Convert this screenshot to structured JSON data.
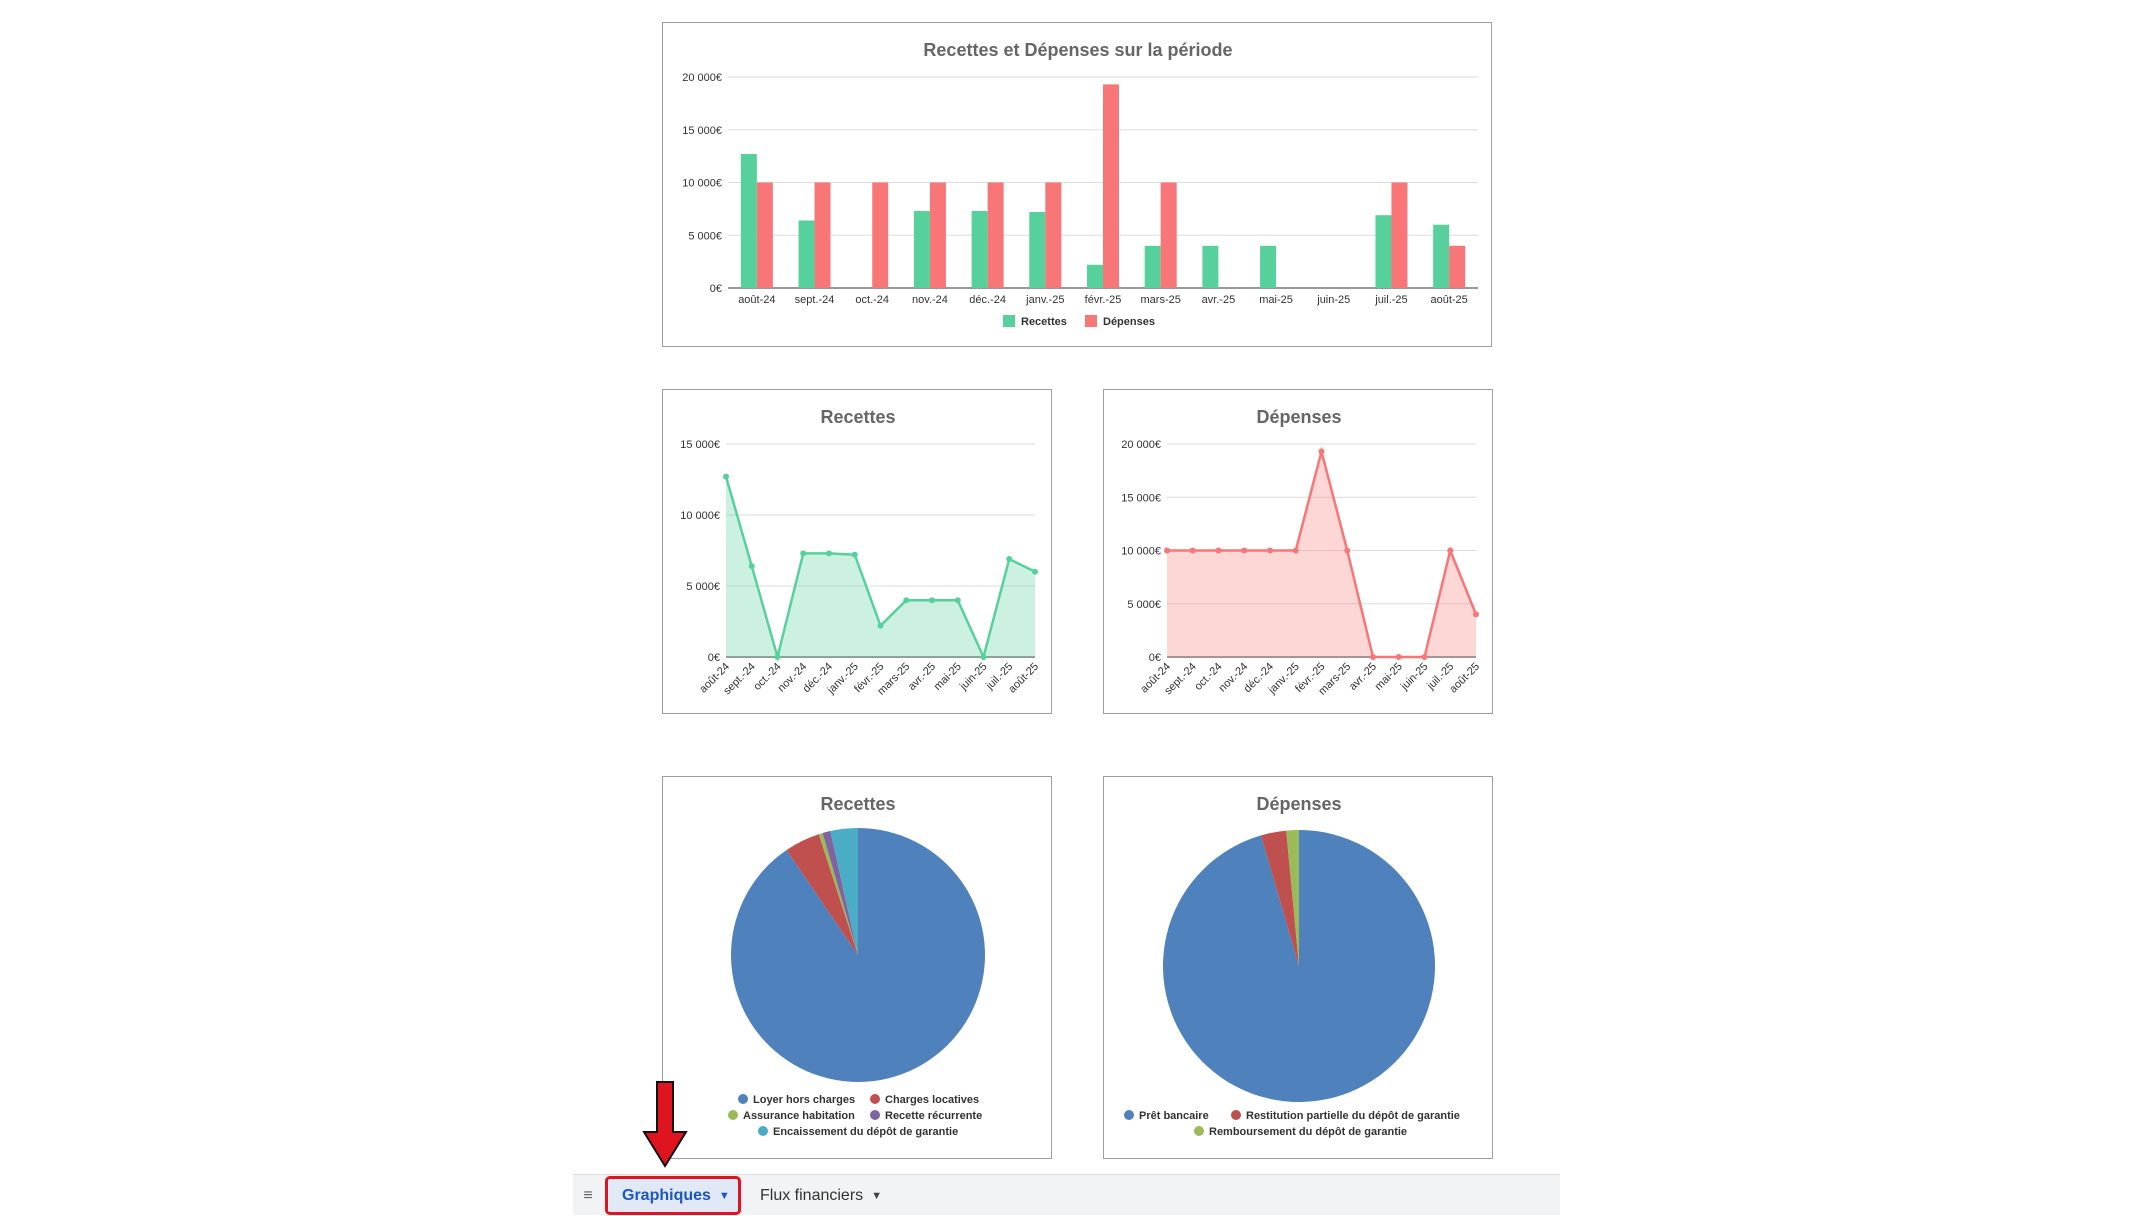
{
  "chart_data": [
    {
      "type": "bar",
      "title": "Recettes et Dépenses sur la période",
      "categories": [
        "août-24",
        "sept.-24",
        "oct.-24",
        "nov.-24",
        "déc.-24",
        "janv.-25",
        "févr.-25",
        "mars-25",
        "avr.-25",
        "mai-25",
        "juin-25",
        "juil.-25",
        "août-25"
      ],
      "y_tick_labels": [
        "0€",
        "5 000€",
        "10 000€",
        "15 000€",
        "20 000€"
      ],
      "ylim": [
        0,
        20000
      ],
      "legend_position": "bottom",
      "series": [
        {
          "name": "Recettes",
          "color": "#57d19c",
          "values": [
            12700,
            6400,
            0,
            7300,
            7300,
            7200,
            2200,
            4000,
            4000,
            4000,
            0,
            6900,
            6000
          ]
        },
        {
          "name": "Dépenses",
          "color": "#f87678",
          "values": [
            10000,
            10000,
            10000,
            10000,
            10000,
            10000,
            19300,
            10000,
            0,
            0,
            0,
            10000,
            4000
          ]
        }
      ]
    },
    {
      "type": "area",
      "title": "Recettes",
      "categories": [
        "août-24",
        "sept.-24",
        "oct.-24",
        "nov.-24",
        "déc.-24",
        "janv.-25",
        "févr.-25",
        "mars-25",
        "avr.-25",
        "mai-25",
        "juin-25",
        "juil.-25",
        "août-25"
      ],
      "y_tick_labels": [
        "0€",
        "5 000€",
        "10 000€",
        "15 000€"
      ],
      "ylim": [
        0,
        15000
      ],
      "series": [
        {
          "color": "#57d19c",
          "values": [
            12700,
            6400,
            0,
            7300,
            7300,
            7200,
            2200,
            4000,
            4000,
            4000,
            0,
            6900,
            6000
          ]
        }
      ]
    },
    {
      "type": "area",
      "title": "Dépenses",
      "categories": [
        "août-24",
        "sept.-24",
        "oct.-24",
        "nov.-24",
        "déc.-24",
        "janv.-25",
        "févr.-25",
        "mars-25",
        "avr.-25",
        "mai-25",
        "juin-25",
        "juil.-25",
        "août-25"
      ],
      "y_tick_labels": [
        "0€",
        "5 000€",
        "10 000€",
        "15 000€",
        "20 000€"
      ],
      "ylim": [
        0,
        20000
      ],
      "series": [
        {
          "color": "#f87678",
          "values": [
            10000,
            10000,
            10000,
            10000,
            10000,
            10000,
            19300,
            10000,
            0,
            0,
            0,
            10000,
            4000
          ]
        }
      ]
    },
    {
      "type": "pie",
      "title": "Recettes",
      "legend_position": "bottom",
      "slices": [
        {
          "label": "Loyer hors charges",
          "value": 90.5,
          "color": "#4f81bd"
        },
        {
          "label": "Charges locatives",
          "value": 4.5,
          "color": "#c0504d"
        },
        {
          "label": "Assurance habitation",
          "value": 0.5,
          "color": "#9bbb59"
        },
        {
          "label": "Recette récurrente",
          "value": 1.0,
          "color": "#8064a2"
        },
        {
          "label": "Encaissement du dépôt de garantie",
          "value": 3.5,
          "color": "#4bacc6"
        }
      ]
    },
    {
      "type": "pie",
      "title": "Dépenses",
      "legend_position": "bottom",
      "slices": [
        {
          "label": "Prêt bancaire",
          "value": 95.5,
          "color": "#4f81bd"
        },
        {
          "label": "Restitution partielle du dépôt de garantie",
          "value": 3.0,
          "color": "#c0504d"
        },
        {
          "label": "Remboursement du dépôt de garantie",
          "value": 1.5,
          "color": "#9bbb59"
        }
      ]
    }
  ],
  "tabs": {
    "menu_icon": "hamburger-icon",
    "items": [
      {
        "label": "Graphiques",
        "active": true
      },
      {
        "label": "Flux financiers",
        "active": false
      }
    ]
  },
  "annotation": {
    "arrow_color": "#e0141e",
    "box_color": "#e0141e"
  }
}
